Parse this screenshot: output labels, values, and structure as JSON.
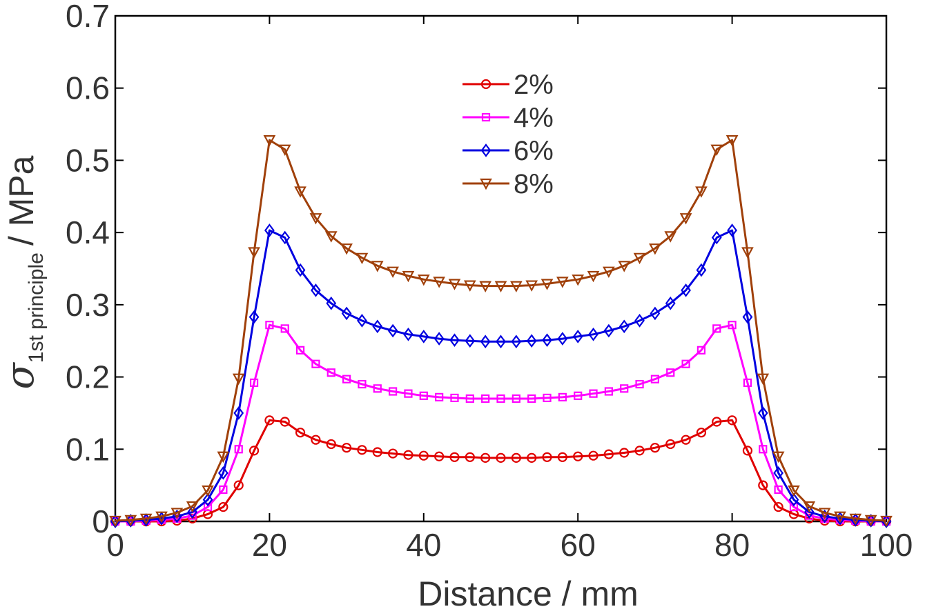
{
  "chart_data": {
    "type": "line",
    "xlabel": "Distance / mm",
    "ylabel": {
      "symbol": "σ",
      "subscript": "1st principle",
      "unit": "/ MPa"
    },
    "xlim": [
      0,
      100
    ],
    "ylim": [
      0,
      0.7
    ],
    "xticks": [
      "0",
      "20",
      "40",
      "60",
      "80",
      "100"
    ],
    "yticks": [
      "0",
      "0.1",
      "0.2",
      "0.3",
      "0.4",
      "0.5",
      "0.6",
      "0.7"
    ],
    "grid": false,
    "legend_position": "top-center",
    "x": [
      0,
      2,
      4,
      6,
      8,
      10,
      12,
      14,
      16,
      18,
      20,
      22,
      24,
      26,
      28,
      30,
      32,
      34,
      36,
      38,
      40,
      42,
      44,
      46,
      48,
      50,
      52,
      54,
      56,
      58,
      60,
      62,
      64,
      66,
      68,
      70,
      72,
      74,
      76,
      78,
      80,
      82,
      84,
      86,
      88,
      90,
      92,
      94,
      96,
      98,
      100
    ],
    "series": [
      {
        "name": "2%",
        "color": "#e00000",
        "marker": "circle",
        "values": [
          0,
          0,
          0,
          0,
          0.001,
          0.004,
          0.01,
          0.02,
          0.05,
          0.098,
          0.14,
          0.138,
          0.123,
          0.113,
          0.107,
          0.102,
          0.099,
          0.096,
          0.094,
          0.092,
          0.091,
          0.09,
          0.089,
          0.089,
          0.088,
          0.088,
          0.088,
          0.088,
          0.089,
          0.089,
          0.09,
          0.091,
          0.093,
          0.095,
          0.098,
          0.102,
          0.107,
          0.113,
          0.123,
          0.138,
          0.14,
          0.098,
          0.05,
          0.02,
          0.01,
          0.004,
          0.001,
          0,
          0,
          0,
          0
        ]
      },
      {
        "name": "4%",
        "color": "#ff00ff",
        "marker": "square",
        "values": [
          0,
          0,
          0.001,
          0.002,
          0.004,
          0.008,
          0.02,
          0.044,
          0.1,
          0.192,
          0.272,
          0.267,
          0.237,
          0.218,
          0.206,
          0.197,
          0.19,
          0.184,
          0.18,
          0.177,
          0.174,
          0.172,
          0.171,
          0.17,
          0.17,
          0.17,
          0.17,
          0.17,
          0.171,
          0.172,
          0.174,
          0.177,
          0.18,
          0.184,
          0.19,
          0.197,
          0.206,
          0.218,
          0.237,
          0.267,
          0.272,
          0.192,
          0.1,
          0.044,
          0.02,
          0.008,
          0.004,
          0.002,
          0.001,
          0,
          0
        ]
      },
      {
        "name": "6%",
        "color": "#0000e0",
        "marker": "diamond",
        "values": [
          0,
          0.001,
          0.002,
          0.004,
          0.007,
          0.013,
          0.03,
          0.067,
          0.15,
          0.283,
          0.403,
          0.393,
          0.348,
          0.32,
          0.302,
          0.288,
          0.278,
          0.27,
          0.264,
          0.259,
          0.256,
          0.253,
          0.251,
          0.25,
          0.249,
          0.249,
          0.249,
          0.25,
          0.251,
          0.253,
          0.256,
          0.259,
          0.264,
          0.27,
          0.278,
          0.288,
          0.302,
          0.32,
          0.348,
          0.393,
          0.403,
          0.283,
          0.15,
          0.067,
          0.03,
          0.013,
          0.007,
          0.004,
          0.002,
          0.001,
          0
        ]
      },
      {
        "name": "8%",
        "color": "#a0400a",
        "marker": "triangle-down",
        "values": [
          0.001,
          0.002,
          0.004,
          0.007,
          0.012,
          0.021,
          0.043,
          0.09,
          0.198,
          0.373,
          0.528,
          0.515,
          0.457,
          0.42,
          0.395,
          0.378,
          0.365,
          0.354,
          0.346,
          0.34,
          0.335,
          0.332,
          0.329,
          0.327,
          0.326,
          0.326,
          0.326,
          0.327,
          0.329,
          0.332,
          0.335,
          0.34,
          0.346,
          0.354,
          0.365,
          0.378,
          0.395,
          0.42,
          0.457,
          0.515,
          0.528,
          0.373,
          0.198,
          0.09,
          0.043,
          0.021,
          0.012,
          0.007,
          0.004,
          0.002,
          0.001
        ]
      }
    ]
  }
}
